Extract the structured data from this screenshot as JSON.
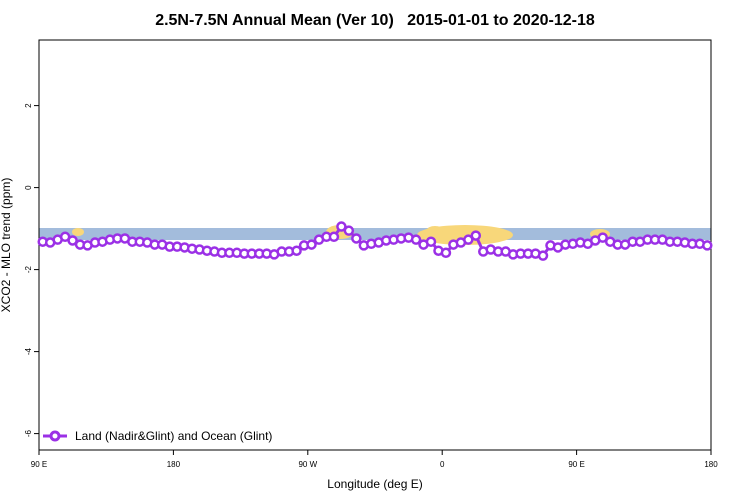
{
  "chart_data": {
    "type": "line",
    "title": "2.5N-7.5N Annual Mean (Ver 10)   2015-01-01 to 2020-12-18",
    "x_label": "Longitude (deg E)",
    "y_label": "XCO2 - MLO trend (ppm)",
    "xlim": [
      90,
      540
    ],
    "ylim": [
      -6.4,
      3.6
    ],
    "xticks": [
      {
        "value": 90,
        "label": "90 E"
      },
      180,
      {
        "value": 270,
        "label": "90 W"
      },
      {
        "value": 360,
        "label": "0"
      },
      {
        "value": 450,
        "label": "90 E"
      },
      {
        "value": 540,
        "label": "180"
      }
    ],
    "yticks": [
      -6,
      -4,
      -2,
      0,
      2
    ],
    "legend": "bottom-left",
    "x": [
      92.5,
      97.5,
      102.5,
      107.5,
      112.5,
      117.5,
      122.5,
      127.5,
      132.5,
      137.5,
      142.5,
      147.5,
      152.5,
      157.5,
      162.5,
      167.5,
      172.5,
      177.5,
      182.5,
      187.5,
      192.5,
      197.5,
      202.5,
      207.5,
      212.5,
      217.5,
      222.5,
      227.5,
      232.5,
      237.5,
      242.5,
      247.5,
      252.5,
      257.5,
      262.5,
      267.5,
      272.5,
      277.5,
      282.5,
      287.5,
      292.5,
      297.5,
      302.5,
      307.5,
      312.5,
      317.5,
      322.5,
      327.5,
      332.5,
      337.5,
      342.5,
      347.5,
      352.5,
      357.5,
      362.5,
      367.5,
      372.5,
      377.5,
      382.5,
      387.5,
      392.5,
      397.5,
      402.5,
      407.5,
      412.5,
      417.5,
      422.5,
      427.5,
      432.5,
      437.5,
      442.5,
      447.5,
      452.5,
      457.5,
      462.5,
      467.5,
      472.5,
      477.5,
      482.5,
      487.5,
      492.5,
      497.5,
      502.5,
      507.5,
      512.5,
      517.5,
      522.5,
      527.5,
      532.5,
      537.5
    ],
    "series": [
      {
        "name": "Land (Nadir&Glint) and Ocean (Glint)",
        "color": "#9b30e6",
        "values": [
          -1.32,
          -1.34,
          -1.27,
          -1.2,
          -1.29,
          -1.39,
          -1.41,
          -1.34,
          -1.32,
          -1.27,
          -1.24,
          -1.24,
          -1.32,
          -1.32,
          -1.34,
          -1.39,
          -1.39,
          -1.44,
          -1.44,
          -1.46,
          -1.49,
          -1.51,
          -1.54,
          -1.56,
          -1.59,
          -1.59,
          -1.59,
          -1.61,
          -1.61,
          -1.61,
          -1.61,
          -1.63,
          -1.56,
          -1.56,
          -1.54,
          -1.41,
          -1.39,
          -1.27,
          -1.2,
          -1.2,
          -0.95,
          -1.05,
          -1.24,
          -1.41,
          -1.37,
          -1.34,
          -1.29,
          -1.27,
          -1.24,
          -1.22,
          -1.27,
          -1.39,
          -1.32,
          -1.54,
          -1.59,
          -1.39,
          -1.34,
          -1.27,
          -1.17,
          -1.56,
          -1.51,
          -1.56,
          -1.56,
          -1.63,
          -1.61,
          -1.61,
          -1.61,
          -1.66,
          -1.41,
          -1.46,
          -1.39,
          -1.37,
          -1.34,
          -1.37,
          -1.29,
          -1.22,
          -1.32,
          -1.39,
          -1.39,
          -1.32,
          -1.32,
          -1.27,
          -1.27,
          -1.27,
          -1.32,
          -1.32,
          -1.34,
          -1.37,
          -1.37,
          -1.41
        ]
      }
    ]
  }
}
